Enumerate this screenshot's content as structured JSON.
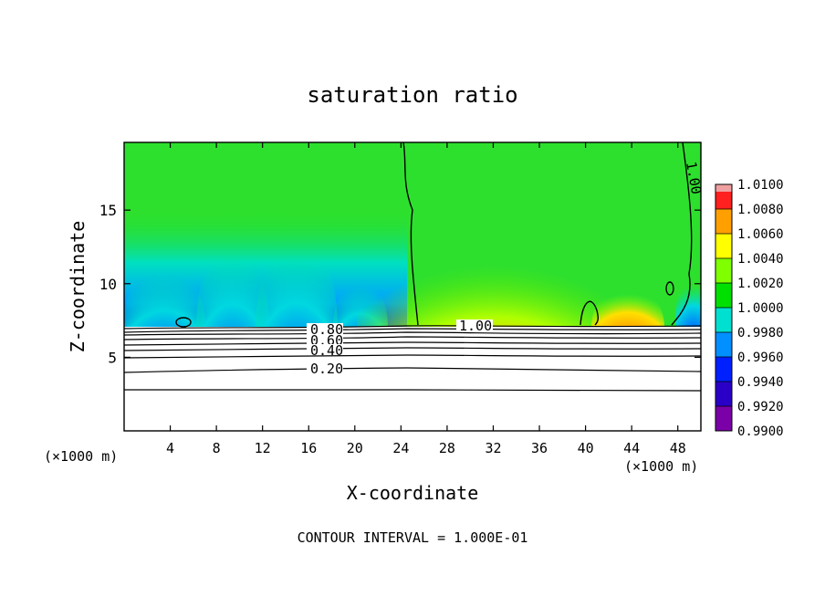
{
  "chart_data": {
    "type": "heatmap",
    "title": "saturation ratio",
    "xlabel": "X-coordinate",
    "ylabel": "Z-coordinate",
    "x_unit_label": "(×1000 m)",
    "footer": "CONTOUR INTERVAL = 1.000E-01",
    "xlim": [
      0,
      50
    ],
    "ylim": [
      0,
      19.6
    ],
    "x_ticks": [
      "4",
      "8",
      "12",
      "16",
      "20",
      "24",
      "28",
      "32",
      "36",
      "40",
      "44",
      "48"
    ],
    "y_ticks": [
      "5",
      "10",
      "15"
    ],
    "colorbar": {
      "labels": [
        "0.9900",
        "0.9920",
        "0.9940",
        "0.9960",
        "0.9980",
        "1.0000",
        "1.0020",
        "1.0040",
        "1.0060",
        "1.0080",
        "1.0100"
      ],
      "colors": [
        "#7b00a8",
        "#2a00c8",
        "#0020ff",
        "#0090ff",
        "#00e0d0",
        "#00e000",
        "#80ff00",
        "#ffff00",
        "#ffa000",
        "#ff2020",
        "#f0a0a0"
      ]
    },
    "contours": [
      {
        "label": "0.80",
        "z": 6.8
      },
      {
        "label": "0.60",
        "z": 6.2
      },
      {
        "label": "0.40",
        "z": 5.6
      },
      {
        "label": "0.20",
        "z": 4.4
      },
      {
        "label": "1.00",
        "z": 7.2
      },
      {
        "label": "1.00",
        "z": 17.8
      }
    ],
    "features": {
      "cloud_base_z": 7.3,
      "dry_band_x": [
        0,
        25
      ],
      "moist_plume_center_x": 30.5,
      "moist_plume_top_z": 14
    }
  }
}
